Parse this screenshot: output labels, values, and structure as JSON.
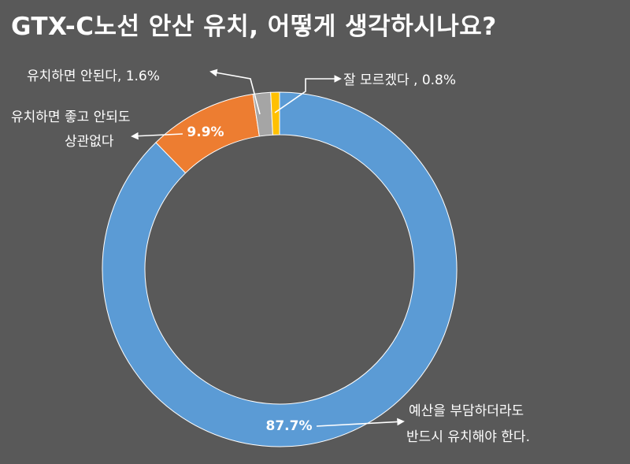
{
  "chart_data": {
    "type": "pie",
    "variant": "donut",
    "title": "GTX-C노선 안산 유치, 어떻게 생각하시나요?",
    "slices": [
      {
        "label_lines": [
          "예산을 부담하더라도",
          "반드시 유치해야 한다."
        ],
        "value": 87.7,
        "value_label": "87.7%",
        "color": "#5b9bd5"
      },
      {
        "label_lines": [
          "유치하면 좋고 안되도",
          "상관없다"
        ],
        "value": 9.9,
        "value_label": "9.9%",
        "color": "#ed7d31"
      },
      {
        "label_lines": [
          "유치하면 안된다, 1.6%"
        ],
        "value": 1.6,
        "value_label": "",
        "color": "#a5a5a5"
      },
      {
        "label_lines": [
          "잘 모르겠다 , 0.8%"
        ],
        "value": 0.8,
        "value_label": "",
        "color": "#ffc000"
      }
    ],
    "start_angle_deg": 0,
    "direction": "clockwise",
    "legend": "none"
  }
}
